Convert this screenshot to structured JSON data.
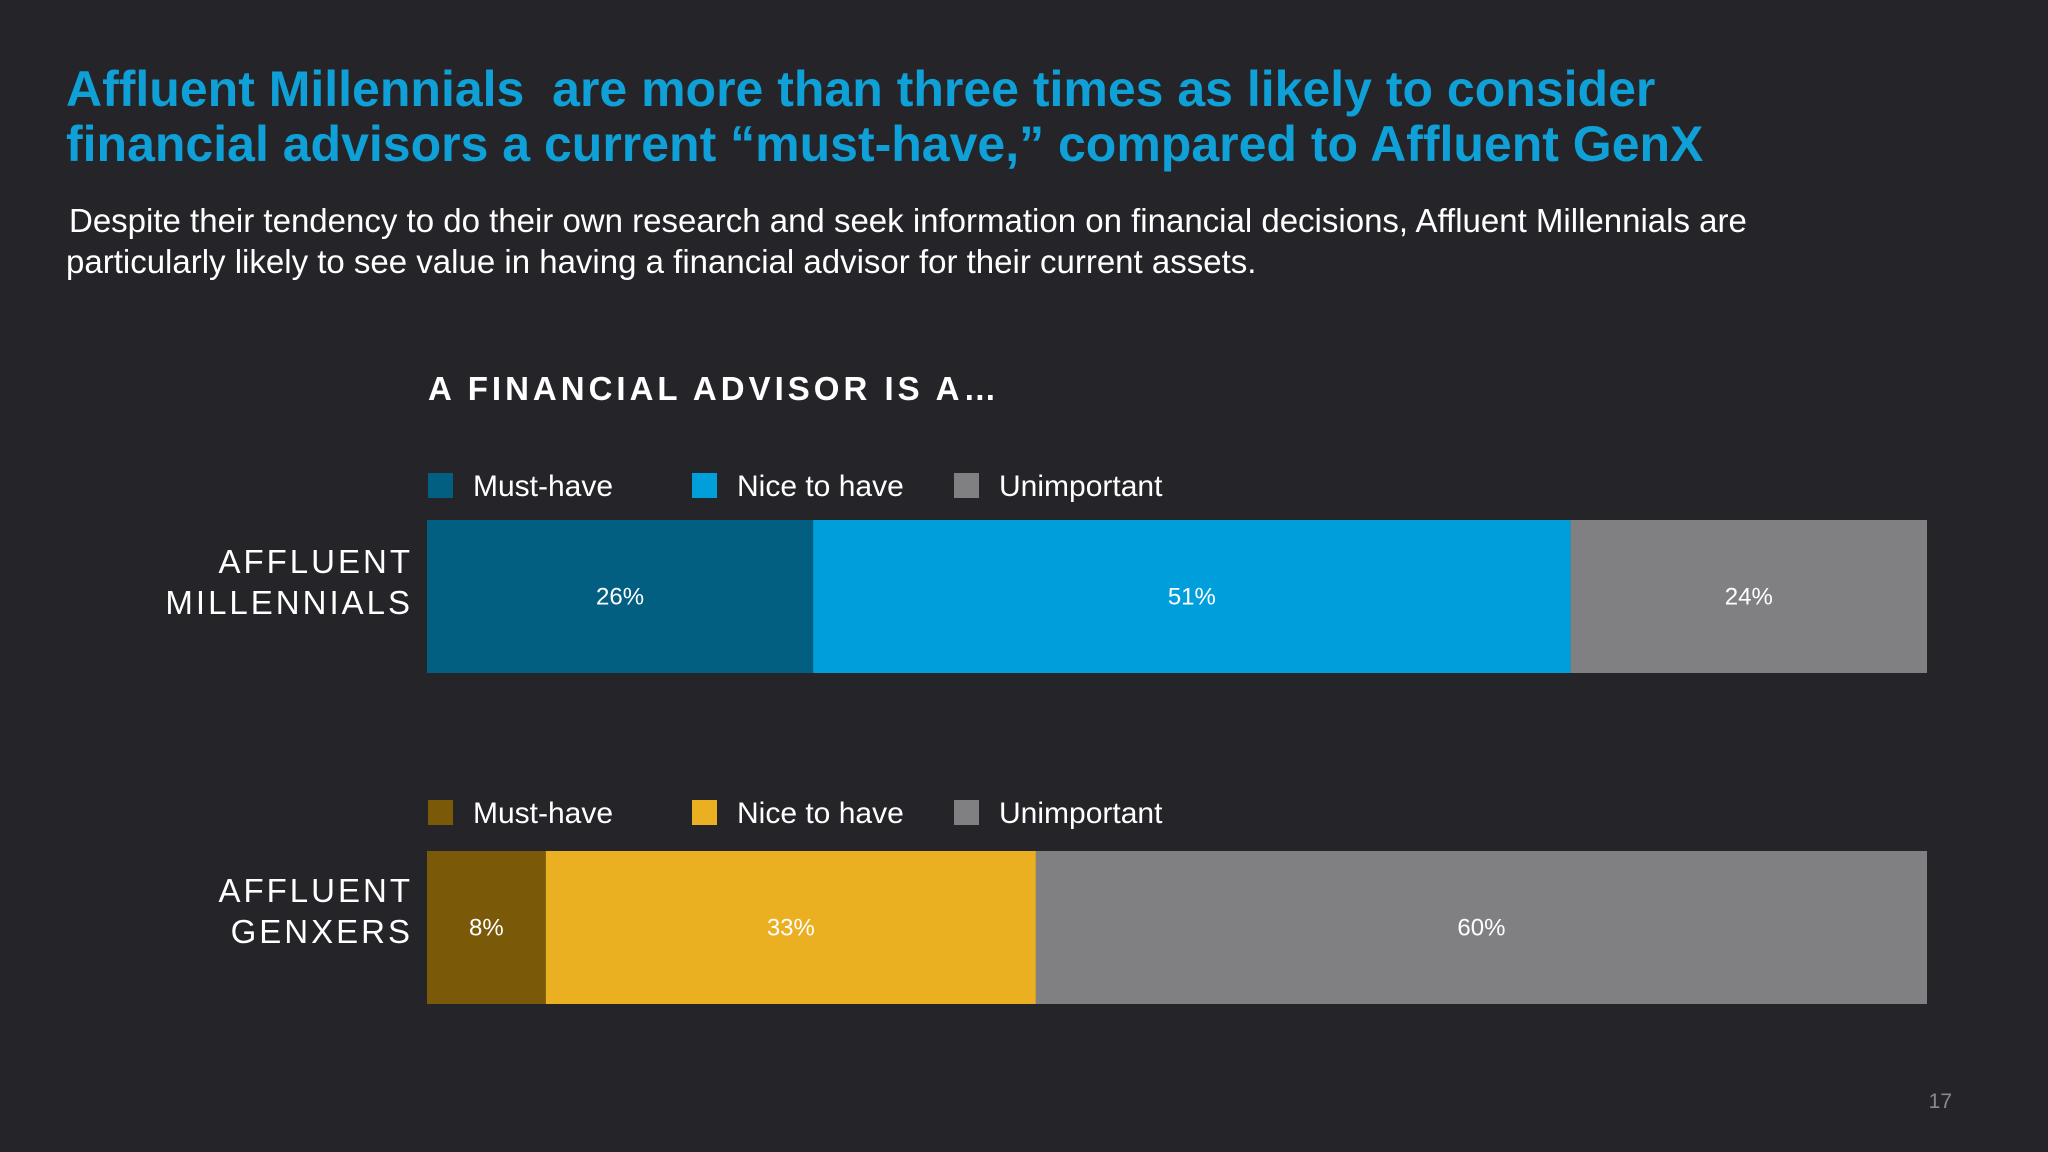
{
  "slide": {
    "title_lines": [
      "Affluent Millennials  are more than three times as likely to consider",
      "financial advisors a current “must-have,” compared to Affluent GenX"
    ],
    "subtitle_lines": [
      "Despite their tendency to do their own research and seek information on financial decisions, Affluent Millennials are",
      "particularly likely to see value in having a financial advisor for their current assets."
    ],
    "page_number": "17"
  },
  "chart_data": {
    "type": "bar",
    "orientation": "horizontal",
    "stacked": true,
    "title": "A FINANCIAL ADVISOR IS A…",
    "categories": [
      "Must-have",
      "Nice to have",
      "Unimportant"
    ],
    "groups": [
      {
        "name_lines": [
          "AFFLUENT",
          "MILLENNIALS"
        ],
        "legend": [
          "Must-have",
          "Nice to have",
          "Unimportant"
        ],
        "values": [
          26,
          51,
          24
        ],
        "labels": [
          "26%",
          "51%",
          "24%"
        ],
        "colors": [
          "#035f82",
          "#009fdb",
          "#808082"
        ]
      },
      {
        "name_lines": [
          "AFFLUENT",
          "GENXERS"
        ],
        "legend": [
          "Must-have",
          "Nice to have",
          "Unimportant"
        ],
        "values": [
          8,
          33,
          60
        ],
        "labels": [
          "8%",
          "33%",
          "60%"
        ],
        "colors": [
          "#7a5a09",
          "#ebb021",
          "#808082"
        ]
      }
    ],
    "grid": false,
    "legend_position": "above each bar"
  }
}
